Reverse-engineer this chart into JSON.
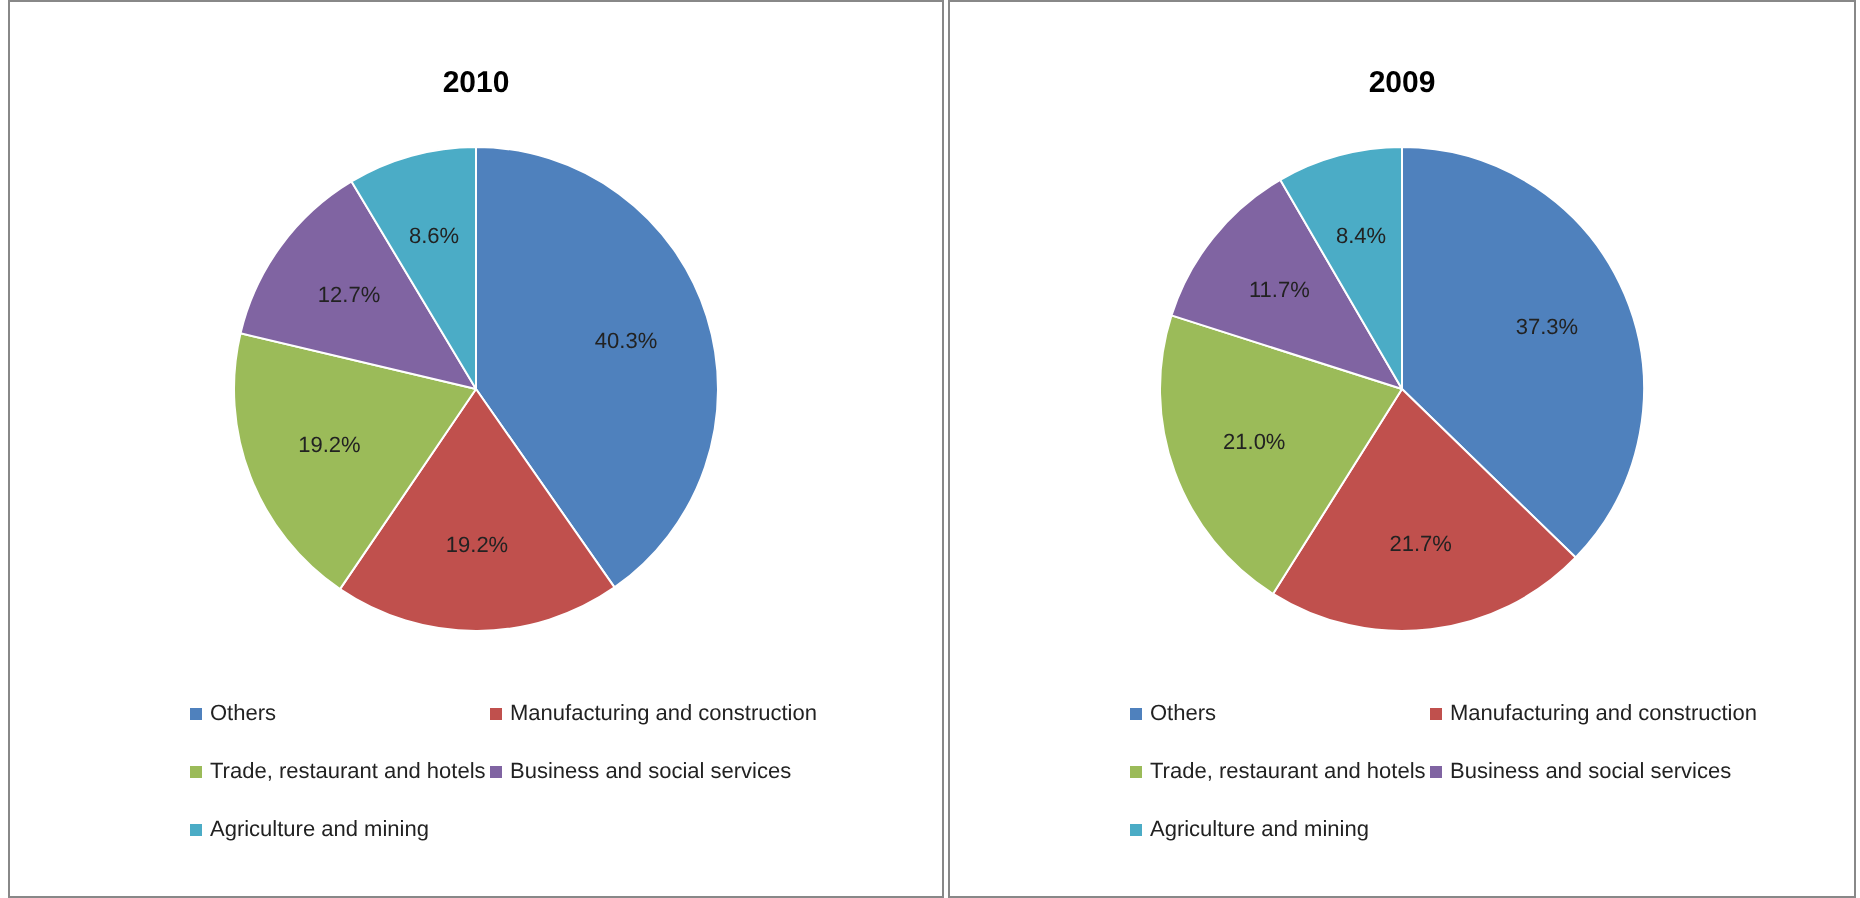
{
  "chart_data": [
    {
      "type": "pie",
      "title": "2010",
      "categories": [
        "Others",
        "Manufacturing and construction",
        "Trade, restaurant and hotels",
        "Business and social services",
        "Agriculture and mining"
      ],
      "values": [
        40.3,
        19.2,
        19.2,
        12.7,
        8.6
      ],
      "value_labels": [
        "40.3%",
        "19.2%",
        "19.2%",
        "12.7%",
        "8.6%"
      ],
      "colors": [
        "#4f81bd",
        "#c0504d",
        "#9bbb59",
        "#8064a2",
        "#4bacc6"
      ],
      "legend": "bottom"
    },
    {
      "type": "pie",
      "title": "2009",
      "categories": [
        "Others",
        "Manufacturing and construction",
        "Trade, restaurant and hotels",
        "Business and social services",
        "Agriculture and mining"
      ],
      "values": [
        37.3,
        21.7,
        21.0,
        11.7,
        8.4
      ],
      "value_labels": [
        "37.3%",
        "21.7%",
        "21.0%",
        "11.7%",
        "8.4%"
      ],
      "colors": [
        "#4f81bd",
        "#c0504d",
        "#9bbb59",
        "#8064a2",
        "#4bacc6"
      ],
      "legend": "bottom"
    }
  ]
}
